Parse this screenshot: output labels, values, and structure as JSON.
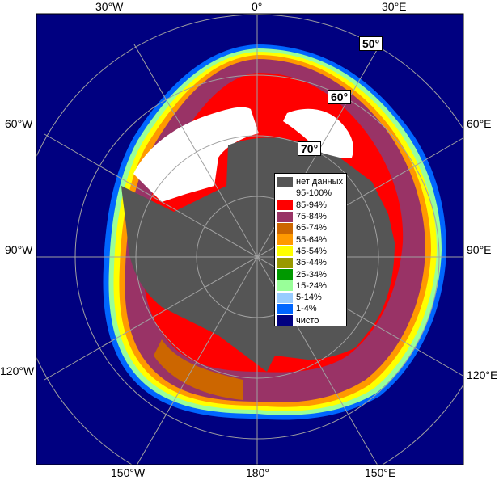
{
  "colors": {
    "open_water": "#000080",
    "land": "#555555",
    "frame": "#ffffff",
    "graticule": "#a0a0a0"
  },
  "lon_labels": {
    "top_left": "30°W",
    "top_center": "0°",
    "top_right": "30°E",
    "left_upper": "60°W",
    "right_upper": "60°E",
    "left_mid": "90°W",
    "right_mid": "90°E",
    "left_lower": "120°W",
    "right_lower": "120°E",
    "bottom_left": "150°W",
    "bottom_center": "180°",
    "bottom_right": "150°E"
  },
  "lat_labels": {
    "lat50": "50°",
    "lat60": "60°",
    "lat70": "70°"
  },
  "legend": {
    "items": [
      {
        "label": "нет данных",
        "color": "#555555"
      },
      {
        "label": "95-100%",
        "color": "#ffffff"
      },
      {
        "label": "85-94%",
        "color": "#ff0000"
      },
      {
        "label": "75-84%",
        "color": "#993366"
      },
      {
        "label": "65-74%",
        "color": "#cc6600"
      },
      {
        "label": "55-64%",
        "color": "#ff9900"
      },
      {
        "label": "45-54%",
        "color": "#ffff00"
      },
      {
        "label": "35-44%",
        "color": "#999900"
      },
      {
        "label": "25-34%",
        "color": "#009900"
      },
      {
        "label": "15-24%",
        "color": "#99ff99"
      },
      {
        "label": "5-14%",
        "color": "#99ccff"
      },
      {
        "label": "1-4%",
        "color": "#0066ff"
      },
      {
        "label": "чисто",
        "color": "#000080"
      }
    ]
  }
}
